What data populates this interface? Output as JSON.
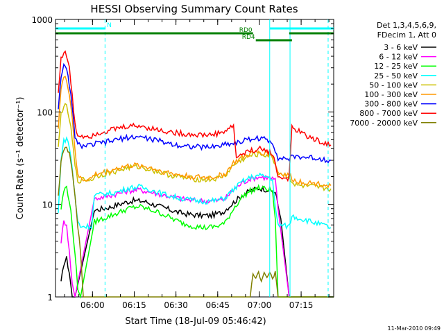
{
  "chart_data": {
    "type": "line",
    "title": "HESSI Observing Summary Count Rates",
    "xlabel": "Start Time (18-Jul-09 05:46:42)",
    "ylabel": "Count Rate (s⁻¹ detector⁻¹)",
    "yscale": "log",
    "ylim": [
      1,
      1000
    ],
    "xlim_minutes": [
      0,
      100
    ],
    "x_unit": "minutes after 05:46:42",
    "x_ticks": [
      {
        "t": 13.3,
        "label": "06:00"
      },
      {
        "t": 28.3,
        "label": "06:15"
      },
      {
        "t": 43.3,
        "label": "06:30"
      },
      {
        "t": 58.3,
        "label": "06:45"
      },
      {
        "t": 73.3,
        "label": "07:00"
      },
      {
        "t": 88.3,
        "label": "07:15"
      }
    ],
    "y_ticks": [
      {
        "v": 1,
        "label": "1"
      },
      {
        "v": 10,
        "label": "10"
      },
      {
        "v": 100,
        "label": "100"
      },
      {
        "v": 1000,
        "label": "1000"
      }
    ],
    "legend_header": [
      "Det 1,3,4,5,6,9,",
      "FDecim 1, Att 0"
    ],
    "legend_position": "right",
    "series": [
      {
        "name": "3 - 6 keV",
        "color": "#000000",
        "points": [
          [
            2,
            1.4
          ],
          [
            3,
            2.3
          ],
          [
            4,
            2.6
          ],
          [
            5,
            1.8
          ],
          [
            6,
            1.0
          ],
          [
            7,
            1.0
          ],
          [
            14,
            8.6
          ],
          [
            16,
            8.9
          ],
          [
            20,
            9.4
          ],
          [
            25,
            10.5
          ],
          [
            28,
            11.0
          ],
          [
            32,
            10.8
          ],
          [
            36,
            9.8
          ],
          [
            40,
            9.0
          ],
          [
            44,
            8.2
          ],
          [
            48,
            7.8
          ],
          [
            52,
            7.6
          ],
          [
            56,
            7.6
          ],
          [
            60,
            8.2
          ],
          [
            64,
            10.5
          ],
          [
            67,
            12.5
          ],
          [
            70,
            14.0
          ],
          [
            73,
            15.0
          ],
          [
            76,
            14.5
          ],
          [
            79,
            13.5
          ],
          [
            81,
            7.0
          ],
          [
            84,
            1.0
          ],
          [
            100,
            1.0
          ]
        ]
      },
      {
        "name": "6 - 12 keV",
        "color": "#ff00ff",
        "points": [
          [
            2,
            4.0
          ],
          [
            3,
            6.5
          ],
          [
            4,
            6.2
          ],
          [
            5,
            3.0
          ],
          [
            6,
            1.4
          ],
          [
            7,
            1.0
          ],
          [
            14,
            11.5
          ],
          [
            18,
            12.2
          ],
          [
            22,
            13.0
          ],
          [
            26,
            14.0
          ],
          [
            30,
            14.4
          ],
          [
            34,
            13.6
          ],
          [
            38,
            12.8
          ],
          [
            42,
            12.0
          ],
          [
            46,
            11.4
          ],
          [
            50,
            11.0
          ],
          [
            54,
            10.9
          ],
          [
            58,
            11.0
          ],
          [
            61,
            11.5
          ],
          [
            64,
            14.5
          ],
          [
            67,
            17.0
          ],
          [
            70,
            19.0
          ],
          [
            73,
            19.8
          ],
          [
            76,
            19.5
          ],
          [
            79,
            18.5
          ],
          [
            80,
            9.0
          ],
          [
            84,
            1.0
          ],
          [
            100,
            1.0
          ]
        ]
      },
      {
        "name": "12 - 25 keV",
        "color": "#00ff00",
        "points": [
          [
            2,
            9.0
          ],
          [
            3,
            14.0
          ],
          [
            4,
            15.5
          ],
          [
            5,
            11.0
          ],
          [
            6,
            6.0
          ],
          [
            7,
            3.0
          ],
          [
            8,
            1.2
          ],
          [
            9,
            1.0
          ],
          [
            14,
            6.5
          ],
          [
            18,
            7.2
          ],
          [
            22,
            8.0
          ],
          [
            26,
            9.0
          ],
          [
            30,
            9.5
          ],
          [
            34,
            8.8
          ],
          [
            38,
            8.0
          ],
          [
            42,
            7.0
          ],
          [
            46,
            6.2
          ],
          [
            50,
            5.8
          ],
          [
            54,
            5.6
          ],
          [
            58,
            5.8
          ],
          [
            61,
            6.3
          ],
          [
            64,
            9.0
          ],
          [
            67,
            12.0
          ],
          [
            70,
            14.0
          ],
          [
            73,
            15.0
          ],
          [
            76,
            14.8
          ],
          [
            78,
            14.0
          ],
          [
            79,
            7.0
          ],
          [
            80,
            1.0
          ],
          [
            100,
            1.0
          ]
        ]
      },
      {
        "name": "25 - 50 keV",
        "color": "#00ffff",
        "points": [
          [
            1,
            8.0
          ],
          [
            2,
            32.0
          ],
          [
            3,
            48.0
          ],
          [
            4,
            52.0
          ],
          [
            5,
            42.0
          ],
          [
            6,
            25.0
          ],
          [
            7,
            12.0
          ],
          [
            8,
            6.5
          ],
          [
            9,
            5.8
          ],
          [
            13,
            5.8
          ],
          [
            14,
            12.5
          ],
          [
            18,
            13.0
          ],
          [
            22,
            13.5
          ],
          [
            26,
            15.0
          ],
          [
            30,
            15.5
          ],
          [
            34,
            14.5
          ],
          [
            38,
            13.2
          ],
          [
            42,
            12.2
          ],
          [
            46,
            11.5
          ],
          [
            50,
            11.0
          ],
          [
            54,
            10.8
          ],
          [
            58,
            11.0
          ],
          [
            61,
            11.8
          ],
          [
            64,
            14.5
          ],
          [
            67,
            17.5
          ],
          [
            70,
            19.5
          ],
          [
            73,
            20.5
          ],
          [
            76,
            20.0
          ],
          [
            78,
            19.0
          ],
          [
            79,
            9.0
          ],
          [
            80,
            6.0
          ],
          [
            84,
            5.8
          ],
          [
            85,
            7.5
          ],
          [
            92,
            6.5
          ],
          [
            96,
            6.0
          ],
          [
            99,
            5.6
          ]
        ]
      },
      {
        "name": "50 - 100 keV",
        "color": "#ccc000",
        "points": [
          [
            1,
            40.0
          ],
          [
            2,
            95.0
          ],
          [
            3,
            118.0
          ],
          [
            4,
            112.0
          ],
          [
            5,
            85.0
          ],
          [
            6,
            50.0
          ],
          [
            7,
            26.0
          ],
          [
            8,
            18.0
          ],
          [
            10,
            18.5
          ],
          [
            13,
            18.5
          ],
          [
            14,
            20.0
          ],
          [
            18,
            21.5
          ],
          [
            22,
            23.0
          ],
          [
            26,
            25.0
          ],
          [
            30,
            25.5
          ],
          [
            34,
            24.0
          ],
          [
            38,
            22.0
          ],
          [
            42,
            20.5
          ],
          [
            46,
            19.5
          ],
          [
            50,
            18.8
          ],
          [
            54,
            18.5
          ],
          [
            58,
            19.0
          ],
          [
            61,
            20.5
          ],
          [
            64,
            26.5
          ],
          [
            67,
            30.5
          ],
          [
            70,
            33.5
          ],
          [
            73,
            35.0
          ],
          [
            76,
            34.0
          ],
          [
            78,
            32.5
          ],
          [
            80,
            22.0
          ],
          [
            84,
            20.0
          ],
          [
            86,
            16.0
          ],
          [
            92,
            15.5
          ],
          [
            96,
            15.0
          ],
          [
            99,
            14.8
          ]
        ]
      },
      {
        "name": "100 - 300 keV",
        "color": "#ff9900",
        "points": [
          [
            1,
            70.0
          ],
          [
            2,
            180.0
          ],
          [
            3,
            235.0
          ],
          [
            4,
            220.0
          ],
          [
            5,
            160.0
          ],
          [
            6,
            85.0
          ],
          [
            7,
            40.0
          ],
          [
            8,
            20.0
          ],
          [
            10,
            18.5
          ],
          [
            13,
            19.0
          ],
          [
            14,
            21.0
          ],
          [
            18,
            22.5
          ],
          [
            22,
            24.5
          ],
          [
            26,
            26.0
          ],
          [
            30,
            26.5
          ],
          [
            34,
            25.0
          ],
          [
            38,
            23.0
          ],
          [
            42,
            21.5
          ],
          [
            46,
            20.5
          ],
          [
            50,
            19.8
          ],
          [
            54,
            19.5
          ],
          [
            58,
            20.0
          ],
          [
            61,
            21.5
          ],
          [
            64,
            28.0
          ],
          [
            67,
            32.0
          ],
          [
            70,
            35.0
          ],
          [
            73,
            37.0
          ],
          [
            76,
            36.0
          ],
          [
            78,
            34.5
          ],
          [
            80,
            22.0
          ],
          [
            84,
            20.5
          ],
          [
            86,
            18.0
          ],
          [
            92,
            17.0
          ],
          [
            96,
            16.5
          ],
          [
            99,
            16.0
          ]
        ]
      },
      {
        "name": "300 - 800 keV",
        "color": "#0000ff",
        "points": [
          [
            1,
            110.0
          ],
          [
            2,
            250.0
          ],
          [
            3,
            310.0
          ],
          [
            4,
            280.0
          ],
          [
            5,
            200.0
          ],
          [
            6,
            110.0
          ],
          [
            7,
            55.0
          ],
          [
            8,
            44.0
          ],
          [
            10,
            43.0
          ],
          [
            13,
            43.5
          ],
          [
            14,
            45.0
          ],
          [
            18,
            47.0
          ],
          [
            22,
            50.0
          ],
          [
            26,
            53.0
          ],
          [
            30,
            54.0
          ],
          [
            34,
            51.0
          ],
          [
            38,
            48.0
          ],
          [
            42,
            45.0
          ],
          [
            46,
            43.0
          ],
          [
            50,
            42.0
          ],
          [
            54,
            41.5
          ],
          [
            58,
            42.5
          ],
          [
            61,
            45.0
          ],
          [
            64,
            46.0
          ],
          [
            67,
            48.0
          ],
          [
            70,
            51.0
          ],
          [
            73,
            52.0
          ],
          [
            76,
            50.0
          ],
          [
            78,
            47.0
          ],
          [
            80,
            32.0
          ],
          [
            84,
            31.0
          ],
          [
            86,
            33.0
          ],
          [
            92,
            32.0
          ],
          [
            96,
            31.0
          ],
          [
            99,
            30.0
          ]
        ]
      },
      {
        "name": "800 - 7000 keV",
        "color": "#ff0000",
        "points": [
          [
            1,
            160.0
          ],
          [
            2,
            380.0
          ],
          [
            3,
            450.0
          ],
          [
            4,
            410.0
          ],
          [
            5,
            290.0
          ],
          [
            6,
            150.0
          ],
          [
            7,
            72.0
          ],
          [
            8,
            56.0
          ],
          [
            10,
            55.0
          ],
          [
            13,
            55.5
          ],
          [
            14,
            58.0
          ],
          [
            18,
            62.0
          ],
          [
            22,
            66.0
          ],
          [
            26,
            70.0
          ],
          [
            30,
            71.0
          ],
          [
            34,
            67.0
          ],
          [
            38,
            63.0
          ],
          [
            42,
            60.0
          ],
          [
            46,
            58.0
          ],
          [
            50,
            57.0
          ],
          [
            54,
            56.0
          ],
          [
            58,
            58.0
          ],
          [
            61,
            62.0
          ],
          [
            64,
            71.0
          ],
          [
            65,
            32.0
          ],
          [
            67,
            35.0
          ],
          [
            70,
            38.0
          ],
          [
            73,
            40.0
          ],
          [
            76,
            38.0
          ],
          [
            78,
            36.0
          ],
          [
            80,
            20.0
          ],
          [
            84,
            19.0
          ],
          [
            85,
            68.0
          ],
          [
            88,
            60.0
          ],
          [
            92,
            52.0
          ],
          [
            96,
            47.0
          ],
          [
            99,
            44.0
          ]
        ]
      },
      {
        "name": "7000 - 20000 keV",
        "color": "#808000",
        "points": [
          [
            1,
            12.0
          ],
          [
            2,
            30.0
          ],
          [
            3,
            38.0
          ],
          [
            4,
            41.0
          ],
          [
            5,
            35.0
          ],
          [
            6,
            22.0
          ],
          [
            7,
            12.0
          ],
          [
            8,
            6.0
          ],
          [
            9,
            3.0
          ],
          [
            10,
            1.0
          ],
          [
            70,
            1.0
          ],
          [
            71,
            1.9
          ],
          [
            72,
            1.6
          ],
          [
            73,
            1.9
          ],
          [
            74,
            1.5
          ],
          [
            75,
            1.9
          ],
          [
            76,
            1.7
          ],
          [
            77,
            1.9
          ],
          [
            78,
            1.6
          ],
          [
            79,
            1.9
          ],
          [
            80,
            1.0
          ],
          [
            100,
            1.0
          ]
        ]
      }
    ],
    "flags": [
      {
        "name": "N",
        "color": "#00ffff",
        "row": 1,
        "segments": [
          [
            0,
            18
          ],
          [
            77,
            100
          ]
        ]
      },
      {
        "name": "RD0",
        "color": "#008000",
        "row": 2,
        "segments": [
          [
            0,
            71
          ],
          [
            84,
            100
          ]
        ]
      },
      {
        "name": "RD4",
        "color": "#008000",
        "row": 3,
        "segments": [
          [
            72,
            85
          ]
        ]
      }
    ],
    "vertical_markers": [
      {
        "t": 17.8,
        "color": "#00ffff",
        "style": "dashed"
      },
      {
        "t": 77.0,
        "color": "#00ffff",
        "style": "solid"
      },
      {
        "t": 84.3,
        "color": "#00ffff",
        "style": "solid"
      },
      {
        "t": 98.0,
        "color": "#00ffff",
        "style": "dashed"
      }
    ]
  },
  "footer_date": "11-Mar-2010 09:49"
}
